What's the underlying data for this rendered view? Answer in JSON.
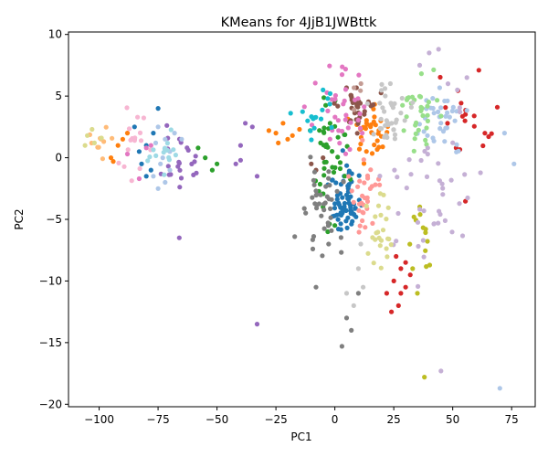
{
  "chart_data": {
    "type": "scatter",
    "title": "KMeans for 4JjB1JWBttk",
    "xlabel": "PC1",
    "ylabel": "PC2",
    "xlim": [
      -113,
      85
    ],
    "ylim": [
      -20.2,
      10.2
    ],
    "xticks": [
      -100,
      -75,
      -50,
      -25,
      0,
      25,
      50,
      75
    ],
    "yticks": [
      -20,
      -15,
      -10,
      -5,
      0,
      5,
      10
    ],
    "xtick_labels": [
      "−100",
      "−75",
      "−50",
      "−25",
      "0",
      "25",
      "50",
      "75"
    ],
    "ytick_labels": [
      "−20",
      "−15",
      "−10",
      "−5",
      "0",
      "5",
      "10"
    ],
    "grid": false,
    "legend": "none",
    "clusters": [
      {
        "color": "#1f77b4",
        "center": [
          5,
          -3.5
        ],
        "spread": [
          3.2,
          1.5
        ],
        "n": 70,
        "extra": [
          [
            -80,
            1
          ],
          [
            -85,
            2.5
          ],
          [
            -78,
            -1
          ],
          [
            -75,
            4
          ],
          [
            -82,
            -0.5
          ],
          [
            -77,
            2
          ],
          [
            -80,
            -1.5
          ],
          [
            -83,
            0.5
          ]
        ]
      },
      {
        "color": "#ff7f0e",
        "center": [
          15,
          2.3
        ],
        "spread": [
          4.0,
          1.3
        ],
        "n": 38,
        "extra": [
          [
            -25,
            2
          ],
          [
            -20,
            1.5
          ],
          [
            -28,
            2.2
          ],
          [
            -22,
            2.8
          ],
          [
            -18,
            1.8
          ],
          [
            -15,
            2.3
          ],
          [
            -24,
            1.2
          ],
          [
            -92,
            1.0
          ],
          [
            -95,
            0.0
          ],
          [
            -90,
            1.5
          ],
          [
            -88,
            2.0
          ],
          [
            -94,
            -0.3
          ]
        ]
      },
      {
        "color": "#2ca02c",
        "center": [
          -3,
          0.5
        ],
        "spread": [
          3.5,
          2.0
        ],
        "n": 40,
        "extra": [
          [
            -55,
            0
          ],
          [
            -50,
            -0.5
          ],
          [
            -58,
            0.8
          ],
          [
            -52,
            -1
          ],
          [
            -3,
            -6
          ],
          [
            0,
            -5.5
          ],
          [
            -5,
            -4
          ]
        ]
      },
      {
        "color": "#d62728",
        "center": [
          57,
          2.5
        ],
        "spread": [
          5,
          2.2
        ],
        "n": 20,
        "extra": [
          [
            25,
            -10
          ],
          [
            28,
            -9
          ],
          [
            30,
            -10.5
          ],
          [
            22,
            -11
          ],
          [
            27,
            -12
          ],
          [
            32,
            -9.5
          ],
          [
            26,
            -8
          ],
          [
            24,
            -12.5
          ],
          [
            30,
            -8.5
          ],
          [
            28,
            -11
          ]
        ]
      },
      {
        "color": "#9467bd",
        "center": [
          -67,
          -0.2
        ],
        "spread": [
          4.5,
          1.2
        ],
        "n": 22,
        "extra": [
          [
            -35,
            2.5
          ],
          [
            -40,
            1
          ],
          [
            -42,
            -0.5
          ],
          [
            -38,
            2.8
          ],
          [
            -33,
            -1.5
          ],
          [
            -66,
            -6.5
          ],
          [
            -33,
            -13.5
          ],
          [
            -40,
            -0.2
          ]
        ]
      },
      {
        "color": "#8c564b",
        "center": [
          10,
          4.2
        ],
        "spread": [
          3.5,
          1.2
        ],
        "n": 32,
        "extra": [
          [
            -5,
            0
          ],
          [
            -8,
            -1
          ],
          [
            -10,
            -0.5
          ]
        ]
      },
      {
        "color": "#e377c2",
        "center": [
          3,
          3.5
        ],
        "spread": [
          6,
          1.8
        ],
        "n": 36,
        "extra": [
          [
            -85,
            1.5
          ],
          [
            -80,
            0.8
          ],
          [
            -83,
            -1.7
          ],
          [
            -88,
            0.3
          ],
          [
            -78,
            1.0
          ]
        ]
      },
      {
        "color": "#7f7f7f",
        "center": [
          -5,
          -4
        ],
        "spread": [
          4,
          2.5
        ],
        "n": 42,
        "extra": [
          [
            -8,
            -10.5
          ],
          [
            5,
            -13
          ],
          [
            7,
            -14
          ],
          [
            3,
            -15.3
          ],
          [
            10,
            -11
          ]
        ]
      },
      {
        "color": "#bcbd22",
        "center": [
          37,
          -6
        ],
        "spread": [
          3,
          1.5
        ],
        "n": 12,
        "extra": [
          [
            38,
            -17.8
          ],
          [
            35,
            -11
          ],
          [
            33,
            -9
          ]
        ]
      },
      {
        "color": "#17becf",
        "center": [
          -10,
          3.5
        ],
        "spread": [
          4,
          1.3
        ],
        "n": 14,
        "extra": [
          [
            -2,
            5.2
          ],
          [
            -5,
            5.5
          ],
          [
            -3,
            4.8
          ]
        ]
      },
      {
        "color": "#aec7e8",
        "center": [
          45,
          3.2
        ],
        "spread": [
          5,
          1.3
        ],
        "n": 36,
        "extra": [
          [
            -75,
            2.5
          ],
          [
            -72,
            1.5
          ],
          [
            -70,
            0.5
          ],
          [
            -68,
            2.0
          ],
          [
            -74,
            -0.5
          ],
          [
            -73,
            0.0
          ],
          [
            -76,
            1.2
          ],
          [
            -70,
            -1.0
          ],
          [
            -65,
            1.5
          ],
          [
            -77,
            -1.5
          ],
          [
            -72,
            -2.0
          ],
          [
            -75,
            -2.5
          ],
          [
            70,
            -18.7
          ],
          [
            72,
            2.0
          ],
          [
            76,
            -0.5
          ]
        ]
      },
      {
        "color": "#ffbb78",
        "center": [
          -100,
          1.5
        ],
        "spread": [
          3,
          0.6
        ],
        "n": 10,
        "extra": []
      },
      {
        "color": "#98df8a",
        "center": [
          36,
          3.6
        ],
        "spread": [
          4,
          1.3
        ],
        "n": 32,
        "extra": []
      },
      {
        "color": "#ff9896",
        "center": [
          13,
          -3
        ],
        "spread": [
          3,
          1.5
        ],
        "n": 32,
        "extra": []
      },
      {
        "color": "#c5b0d5",
        "center": [
          40,
          -3
        ],
        "spread": [
          10,
          3
        ],
        "n": 42,
        "extra": [
          [
            45,
            -17.3
          ],
          [
            44,
            8.8
          ],
          [
            40,
            8.5
          ],
          [
            36,
            7.5
          ],
          [
            52,
            5.5
          ],
          [
            48,
            6.0
          ],
          [
            56,
            6.5
          ]
        ]
      },
      {
        "color": "#c49c94",
        "center": [
          10,
          5.5
        ],
        "spread": [
          3,
          1
        ],
        "n": 4,
        "extra": []
      },
      {
        "color": "#f7b6d2",
        "center": [
          -86,
          1.2
        ],
        "spread": [
          4,
          1.3
        ],
        "n": 16,
        "extra": []
      },
      {
        "color": "#c7c7c7",
        "center": [
          23,
          3
        ],
        "spread": [
          4,
          1.5
        ],
        "n": 36,
        "extra": [
          [
            10,
            -9
          ],
          [
            12,
            -10.5
          ],
          [
            8,
            -12
          ],
          [
            5,
            -11
          ],
          [
            11,
            -7
          ]
        ]
      },
      {
        "color": "#dbdb8d",
        "center": [
          18,
          -6.5
        ],
        "spread": [
          3,
          2
        ],
        "n": 24,
        "extra": [
          [
            -105,
            1.8
          ],
          [
            -102,
            1.2
          ],
          [
            -106,
            1.0
          ],
          [
            -103,
            2.3
          ],
          [
            -99,
            1.6
          ]
        ]
      },
      {
        "color": "#9edae5",
        "center": [
          -73,
          0.8
        ],
        "spread": [
          3,
          1
        ],
        "n": 16,
        "extra": []
      }
    ],
    "seed": 20240613
  }
}
